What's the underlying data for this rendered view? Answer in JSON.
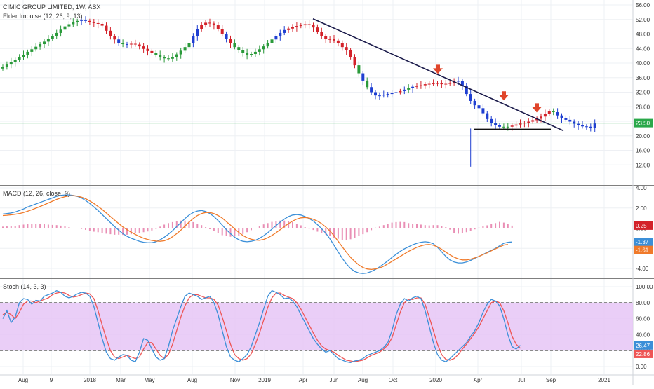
{
  "header": {
    "symbol_line": "CIMIC GROUP LIMITED, 1W, ASX",
    "study_line": "Elder Impulse (12, 26, 9, 13)"
  },
  "colors": {
    "up": "#2a9a3a",
    "down": "#d3222a",
    "neutral": "#1f3fd1",
    "macd_line": "#3b8fd8",
    "signal_line": "#f07a2a",
    "histogram": "#e98fb5",
    "stoch_k": "#3b8fd8",
    "stoch_d": "#ee5555",
    "stoch_band": "#e6c6f6",
    "hline": "#2aa84a",
    "trendline": "#1a1a4a",
    "arrow": "#e0452a"
  },
  "x_axis": {
    "tick_labels": [
      "Aug",
      "9",
      "2018",
      "Mar",
      "May",
      "Aug",
      "Nov",
      "2019",
      "Apr",
      "Jun",
      "Aug",
      "Oct",
      "2020",
      "Apr",
      "Jul",
      "Sep",
      "2021"
    ]
  },
  "chart_data": [
    {
      "type": "candlestick",
      "title": "CIMIC GROUP LIMITED, 1W, ASX",
      "ylim": [
        8,
        56
      ],
      "y_ticks": [
        "56.00",
        "52.00",
        "48.00",
        "44.00",
        "40.00",
        "36.00",
        "32.00",
        "28.00",
        "24.00",
        "20.00",
        "16.00",
        "12.00"
      ],
      "price_line_label": "23.50",
      "price_line": 23.5,
      "closes": [
        39,
        39.6,
        40.3,
        40.9,
        41.6,
        42.3,
        43.1,
        43.8,
        44.5,
        45.2,
        45.9,
        46.6,
        47.4,
        48.3,
        49.2,
        50.1,
        50.7,
        51.2,
        51.6,
        51.8,
        51.6,
        51.3,
        51,
        50.8,
        50.3,
        48.9,
        47.5,
        46.5,
        45.4,
        45.2,
        45.2,
        45.3,
        45.1,
        44.6,
        43.9,
        43.3,
        42.8,
        42.3,
        41.7,
        41.3,
        41.2,
        41.6,
        42.4,
        43.4,
        44.4,
        45.4,
        47.4,
        49.3,
        50.6,
        51.1,
        50.9,
        50.4,
        49.4,
        48.1,
        46.7,
        45.4,
        44.4,
        43.6,
        42.8,
        42.3,
        42.5,
        43.1,
        43.8,
        44.6,
        45.5,
        46.5,
        47.4,
        48.3,
        49.1,
        49.5,
        49.9,
        50.2,
        50.4,
        50.7,
        50.5,
        49.8,
        48.6,
        47.4,
        46.6,
        46.6,
        46.2,
        45.4,
        44.4,
        43.5,
        41.6,
        39.4,
        37.2,
        35.2,
        33.4,
        32,
        31.1,
        31.1,
        31.3,
        31.5,
        31.8,
        32,
        32.3,
        32.7,
        33.1,
        33.5,
        33.7,
        33.9,
        34.2,
        34.3,
        34.4,
        34.5,
        34.2,
        34.3,
        34.6,
        35,
        35.1,
        33.7,
        31.5,
        29.6,
        28.4,
        27.6,
        26.2,
        24.6,
        23.6,
        22.9,
        22.5,
        22.4,
        22.5,
        22.8,
        23.1,
        23.4,
        23.6,
        23.9,
        24.3,
        24.7,
        25.3,
        26.1,
        26.7,
        26.5,
        25.6,
        24.8,
        24.4,
        23.9,
        23.3,
        22.9,
        22.6,
        22.5,
        22.2,
        23.4
      ],
      "colors": "gggggggggggggggggggbbrrrrrrrbgbrrrrrrgggggggggbbrrrrrrbrggggggggggbbbrrrrrrrrrrrrrrrrrgbgbbbbbbbrbgbrrrrrrrrrrbbbbbbbbbbbggrrrrrrrrrrg",
      "annotations": [
        "trendline",
        "support-line",
        "arrow",
        "arrow",
        "arrow"
      ]
    },
    {
      "type": "line",
      "title": "MACD (12, 26, close, 9)",
      "ylim": [
        -5,
        4
      ],
      "y_ticks": [
        "4.00",
        "2.00",
        "0.00",
        "-2.00",
        "-4.00"
      ],
      "last_value_labels": [
        "0.25",
        "-1.37",
        "-1.61"
      ],
      "series": [
        {
          "name": "",
          "values": [
            1.4,
            1.45,
            1.5,
            1.6,
            1.75,
            1.9,
            2.1,
            2.25,
            2.4,
            2.55,
            2.7,
            2.85,
            3.0,
            3.15,
            3.25,
            3.3,
            3.3,
            3.25,
            3.15,
            3.0,
            2.75,
            2.45,
            2.1,
            1.75,
            1.35,
            0.95,
            0.55,
            0.15,
            -0.2,
            -0.55,
            -0.8,
            -1.0,
            -1.15,
            -1.3,
            -1.4,
            -1.45,
            -1.45,
            -1.35,
            -1.15,
            -0.9,
            -0.6,
            -0.25,
            0.15,
            0.55,
            0.95,
            1.3,
            1.55,
            1.7,
            1.75,
            1.65,
            1.45,
            1.15,
            0.75,
            0.3,
            -0.15,
            -0.55,
            -0.9,
            -1.15,
            -1.3,
            -1.35,
            -1.3,
            -1.2,
            -1.0,
            -0.75,
            -0.45,
            -0.1,
            0.25,
            0.6,
            0.9,
            1.15,
            1.3,
            1.35,
            1.3,
            1.15,
            0.95,
            0.7,
            0.35,
            -0.05,
            -0.5,
            -1.05,
            -1.7,
            -2.35,
            -3.0,
            -3.55,
            -4.0,
            -4.3,
            -4.45,
            -4.5,
            -4.45,
            -4.3,
            -4.1,
            -3.85,
            -3.55,
            -3.25,
            -2.9,
            -2.6,
            -2.3,
            -2.05,
            -1.85,
            -1.65,
            -1.5,
            -1.4,
            -1.35,
            -1.4,
            -1.55,
            -1.9,
            -2.35,
            -2.8,
            -3.15,
            -3.35,
            -3.45,
            -3.45,
            -3.35,
            -3.2,
            -3.0,
            -2.8,
            -2.6,
            -2.4,
            -2.2,
            -2.0,
            -1.75,
            -1.5,
            -1.4,
            -1.37
          ]
        },
        {
          "name": "",
          "values": [
            1.25,
            1.28,
            1.32,
            1.38,
            1.45,
            1.55,
            1.68,
            1.82,
            1.98,
            2.15,
            2.32,
            2.5,
            2.68,
            2.85,
            3.0,
            3.12,
            3.2,
            3.22,
            3.18,
            3.08,
            2.92,
            2.7,
            2.45,
            2.15,
            1.85,
            1.5,
            1.15,
            0.8,
            0.45,
            0.12,
            -0.15,
            -0.4,
            -0.62,
            -0.82,
            -1.0,
            -1.12,
            -1.22,
            -1.28,
            -1.3,
            -1.25,
            -1.1,
            -0.85,
            -0.55,
            -0.2,
            0.2,
            0.6,
            0.95,
            1.25,
            1.45,
            1.55,
            1.55,
            1.45,
            1.25,
            1.0,
            0.65,
            0.3,
            -0.08,
            -0.42,
            -0.72,
            -0.95,
            -1.1,
            -1.18,
            -1.2,
            -1.12,
            -0.95,
            -0.72,
            -0.45,
            -0.15,
            0.15,
            0.45,
            0.7,
            0.9,
            1.02,
            1.05,
            1.0,
            0.88,
            0.7,
            0.45,
            0.12,
            -0.28,
            -0.75,
            -1.3,
            -1.85,
            -2.4,
            -2.9,
            -3.3,
            -3.65,
            -3.9,
            -4.05,
            -4.1,
            -4.05,
            -3.95,
            -3.78,
            -3.55,
            -3.3,
            -3.05,
            -2.8,
            -2.55,
            -2.3,
            -2.1,
            -1.9,
            -1.75,
            -1.65,
            -1.62,
            -1.7,
            -1.85,
            -2.1,
            -2.38,
            -2.65,
            -2.88,
            -3.05,
            -3.15,
            -3.15,
            -3.08,
            -2.95,
            -2.8,
            -2.62,
            -2.45,
            -2.25,
            -2.05,
            -1.85,
            -1.68,
            -1.61
          ]
        }
      ],
      "histogram": [
        0.15,
        0.17,
        0.18,
        0.22,
        0.3,
        0.35,
        0.42,
        0.43,
        0.42,
        0.4,
        0.38,
        0.35,
        0.32,
        0.3,
        0.25,
        0.18,
        0.1,
        0.03,
        -0.03,
        -0.08,
        -0.17,
        -0.25,
        -0.35,
        -0.4,
        -0.5,
        -0.55,
        -0.6,
        -0.65,
        -0.65,
        -0.67,
        -0.65,
        -0.6,
        -0.53,
        -0.48,
        -0.4,
        -0.33,
        -0.23,
        -0.07,
        0.15,
        0.35,
        0.5,
        0.6,
        0.7,
        0.75,
        0.75,
        0.7,
        0.6,
        0.45,
        0.3,
        0.1,
        -0.1,
        -0.3,
        -0.5,
        -0.7,
        -0.8,
        -0.85,
        -0.82,
        -0.73,
        -0.58,
        -0.4,
        -0.2,
        -0.02,
        0.2,
        0.37,
        0.5,
        0.62,
        0.71,
        0.75,
        0.75,
        0.7,
        0.6,
        0.45,
        0.28,
        0.1,
        -0.05,
        -0.18,
        -0.35,
        -0.5,
        -0.62,
        -0.77,
        -0.95,
        -1.05,
        -1.15,
        -1.15,
        -1.1,
        -1.0,
        -0.8,
        -0.6,
        -0.4,
        -0.2,
        0.05,
        0.15,
        0.3,
        0.45,
        0.55,
        0.6,
        0.62,
        0.6,
        0.5,
        0.45,
        0.4,
        0.35,
        0.3,
        0.27,
        0.3,
        0.3,
        0.2,
        0.1,
        -0.15,
        -0.47,
        -0.55,
        -0.5,
        -0.4,
        -0.28,
        -0.12,
        0.05,
        0.18,
        0.28,
        0.42,
        0.5,
        0.62,
        0.55,
        0.45,
        0.25
      ]
    },
    {
      "type": "line",
      "title": "Stoch (14, 3, 3)",
      "ylim": [
        -5,
        105
      ],
      "y_ticks": [
        "100.00",
        "80.00",
        "60.00",
        "40.00",
        "20.00",
        "0.00"
      ],
      "band": [
        20,
        80
      ],
      "last_value_labels": [
        "26.47",
        "22.86"
      ],
      "series": [
        {
          "name": "",
          "values": [
            60,
            70,
            55,
            62,
            80,
            85,
            84,
            78,
            83,
            82,
            88,
            90,
            92,
            95,
            93,
            88,
            86,
            88,
            91,
            93,
            92,
            88,
            75,
            55,
            35,
            18,
            10,
            8,
            12,
            15,
            14,
            8,
            6,
            18,
            35,
            33,
            22,
            12,
            8,
            10,
            25,
            45,
            60,
            75,
            88,
            92,
            90,
            88,
            84,
            86,
            88,
            80,
            65,
            45,
            25,
            12,
            8,
            6,
            10,
            15,
            25,
            40,
            55,
            72,
            88,
            95,
            93,
            90,
            85,
            86,
            82,
            75,
            65,
            55,
            45,
            35,
            28,
            22,
            18,
            20,
            15,
            10,
            8,
            6,
            5,
            7,
            8,
            10,
            14,
            16,
            18,
            20,
            24,
            30,
            45,
            65,
            78,
            85,
            82,
            86,
            88,
            85,
            70,
            50,
            30,
            15,
            8,
            6,
            10,
            15,
            20,
            25,
            30,
            38,
            45,
            55,
            68,
            78,
            84,
            82,
            76,
            60,
            40,
            25,
            22,
            26.47
          ]
        },
        {
          "name": "",
          "values": [
            65,
            68,
            65,
            60,
            68,
            78,
            82,
            82,
            80,
            82,
            84,
            86,
            90,
            92,
            93,
            92,
            89,
            87,
            88,
            90,
            92,
            91,
            85,
            70,
            52,
            35,
            20,
            12,
            10,
            12,
            14,
            12,
            10,
            12,
            22,
            30,
            30,
            22,
            14,
            10,
            15,
            28,
            45,
            62,
            76,
            86,
            90,
            90,
            88,
            86,
            86,
            84,
            77,
            62,
            45,
            28,
            15,
            10,
            8,
            10,
            16,
            28,
            42,
            58,
            74,
            86,
            92,
            92,
            89,
            87,
            85,
            80,
            72,
            62,
            52,
            42,
            33,
            26,
            22,
            20,
            18,
            14,
            11,
            8,
            7,
            6,
            7,
            8,
            11,
            14,
            16,
            18,
            22,
            27,
            36,
            52,
            68,
            80,
            84,
            84,
            86,
            86,
            78,
            62,
            45,
            28,
            15,
            9,
            8,
            10,
            15,
            22,
            28,
            35,
            42,
            50,
            60,
            70,
            80,
            82,
            80,
            70,
            55,
            38,
            28,
            22.86
          ]
        }
      ]
    }
  ]
}
